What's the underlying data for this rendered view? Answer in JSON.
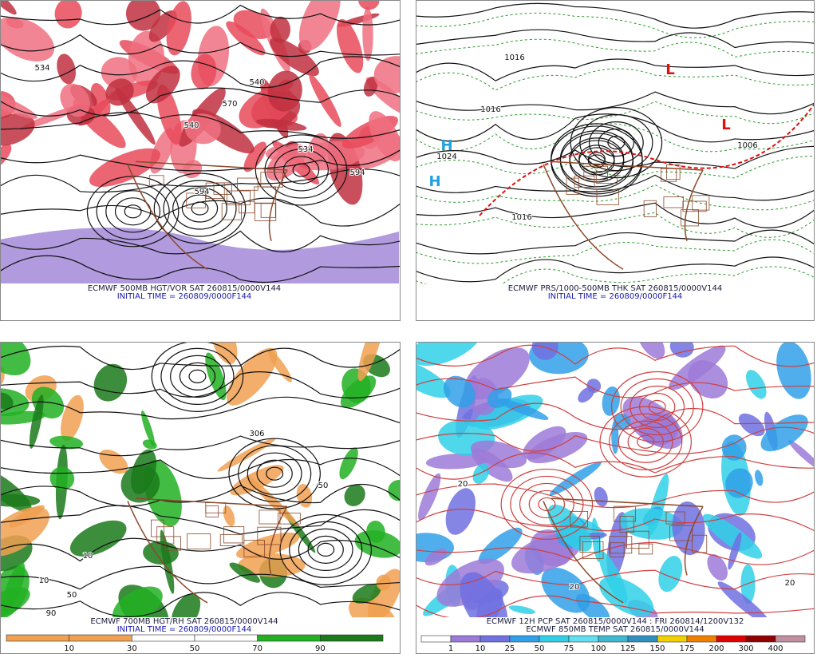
{
  "panels": [
    {
      "captions": [
        "ECMWF 500MB HGT/VOR SAT 260815/0000V144",
        "INITIAL TIME = 260809/0000F144"
      ],
      "labels": [
        "570",
        "540",
        "534",
        "594",
        "594",
        "540",
        "534"
      ]
    },
    {
      "captions": [
        "ECMWF PRS/1000-500MB THK SAT 260815/0000V144",
        "INITIAL TIME = 260809/0000F144"
      ],
      "labels": [
        "1016",
        "1016",
        "1024",
        "1006",
        "1016",
        "H",
        "L",
        "L",
        "H"
      ]
    },
    {
      "captions": [
        "ECMWF 700MB HGT/RH SAT 260815/0000V144",
        "INITIAL TIME = 260809/0000F144"
      ],
      "labels": [
        "306",
        "50",
        "10",
        "10",
        "50",
        "90"
      ],
      "colorbar": {
        "labels": [
          "10",
          "30",
          "50",
          "70",
          "90"
        ],
        "colors": [
          "#f0a050",
          "#f0a050",
          "#ffffff",
          "#ffffff",
          "#22b022",
          "#1a7a1a"
        ]
      }
    },
    {
      "captions": [
        "ECMWF 12H PCP SAT 260815/0000V144 : FRI 260814/1200V132",
        "ECMWF 850MB TEMP SAT 260815/0000V144"
      ],
      "labels": [
        "20",
        "20",
        "20"
      ],
      "colorbar": {
        "labels": [
          "1",
          "10",
          "25",
          "50",
          "75",
          "100",
          "125",
          "150",
          "175",
          "200",
          "300",
          "400"
        ],
        "colors": [
          "#ffffff",
          "#9c7ad8",
          "#7070e0",
          "#30a0e8",
          "#30d0e8",
          "#60e0f0",
          "#40b8d0",
          "#3090c0",
          "#f0d000",
          "#f08000",
          "#e00000",
          "#900000",
          "#c090a0"
        ]
      }
    }
  ]
}
